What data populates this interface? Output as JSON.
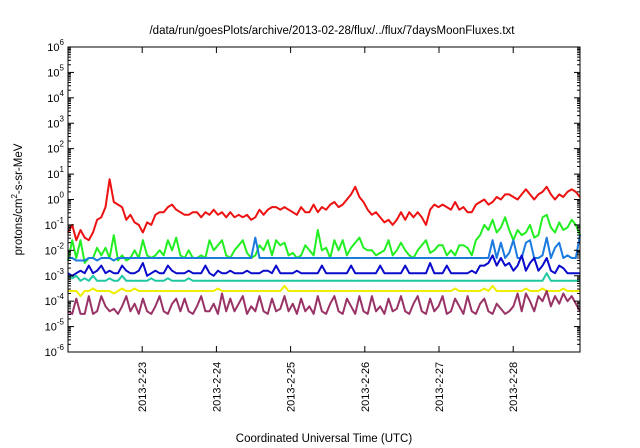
{
  "chart_data": {
    "type": "line",
    "title": "/data/run/goesPlots/archive/2013-02-28/flux/../flux/7daysMoonFluxes.txt",
    "xlabel": "Coordinated Universal Time (UTC)",
    "ylabel": "protons/cm²-s-sr-MeV",
    "ylabel_parts": {
      "pre": "protons/cm",
      "sup": "2",
      "post": "-s-sr-MeV"
    },
    "y_scale": "log",
    "ylim_exponents": [
      -6,
      6
    ],
    "yticks": [
      {
        "base": "10",
        "exp": "6"
      },
      {
        "base": "10",
        "exp": "5"
      },
      {
        "base": "10",
        "exp": "4"
      },
      {
        "base": "10",
        "exp": "3"
      },
      {
        "base": "10",
        "exp": "2"
      },
      {
        "base": "10",
        "exp": "1"
      },
      {
        "base": "10",
        "exp": "0"
      },
      {
        "base": "10",
        "exp": "-1"
      },
      {
        "base": "10",
        "exp": "-2"
      },
      {
        "base": "10",
        "exp": "-3"
      },
      {
        "base": "10",
        "exp": "-4"
      },
      {
        "base": "10",
        "exp": "-5"
      },
      {
        "base": "10",
        "exp": "-6"
      }
    ],
    "xlim_days": [
      22.0,
      28.9
    ],
    "xticks": [
      {
        "label": "2013-2-23",
        "day": 23
      },
      {
        "label": "2013-2-24",
        "day": 24
      },
      {
        "label": "2013-2-25",
        "day": 25
      },
      {
        "label": "2013-2-26",
        "day": 26
      },
      {
        "label": "2013-2-27",
        "day": 27
      },
      {
        "label": "2013-2-28",
        "day": 28
      }
    ],
    "grid": false,
    "legend": "none",
    "n_points": 124,
    "series": [
      {
        "color": "#ee1111",
        "log_values": [
          -1.3,
          -1.0,
          -1.6,
          -1.2,
          -1.5,
          -1.6,
          -1.3,
          -0.8,
          -0.7,
          -0.3,
          0.8,
          -0.1,
          -0.2,
          -0.3,
          -0.8,
          -0.6,
          -0.9,
          -1.0,
          -1.3,
          -0.9,
          -1.0,
          -0.6,
          -0.5,
          -0.5,
          -0.3,
          -0.2,
          -0.4,
          -0.5,
          -0.6,
          -0.6,
          -0.5,
          -0.5,
          -0.7,
          -0.5,
          -0.6,
          -0.4,
          -0.6,
          -0.5,
          -0.7,
          -0.5,
          -0.7,
          -0.6,
          -0.7,
          -0.6,
          -0.8,
          -0.7,
          -0.4,
          -0.6,
          -0.4,
          -0.3,
          -0.3,
          -0.4,
          -0.3,
          -0.4,
          -0.5,
          -0.6,
          -0.3,
          -0.5,
          -0.5,
          -0.2,
          -0.5,
          -0.3,
          -0.4,
          -0.2,
          -0.1,
          -0.3,
          -0.2,
          0.0,
          0.2,
          0.5,
          0.1,
          -0.1,
          -0.4,
          -0.6,
          -0.5,
          -0.7,
          -0.9,
          -0.8,
          -1.0,
          -0.8,
          -0.5,
          -0.8,
          -0.5,
          -0.7,
          -0.5,
          -0.7,
          -1.0,
          -0.4,
          -0.2,
          -0.3,
          -0.2,
          -0.3,
          -0.4,
          -0.1,
          -0.4,
          -0.3,
          -0.5,
          -0.5,
          -0.2,
          -0.1,
          0.0,
          -0.2,
          -0.1,
          0.1,
          0.0,
          0.2,
          0.2,
          0.1,
          0.0,
          0.2,
          0.4,
          0.2,
          0.0,
          0.2,
          0.3,
          0.5,
          0.2,
          0.0,
          0.2,
          0.1,
          0.3,
          0.4,
          0.3,
          0.1
        ]
      },
      {
        "color": "#22ee22",
        "log_values": [
          -2.4,
          -1.6,
          -2.3,
          -1.6,
          -2.5,
          -2.3,
          -2.3,
          -1.9,
          -2.2,
          -1.9,
          -2.3,
          -1.4,
          -2.4,
          -2.2,
          -2.4,
          -2.3,
          -2.0,
          -2.3,
          -1.6,
          -2.2,
          -2.3,
          -2.2,
          -2.0,
          -2.2,
          -1.6,
          -2.0,
          -1.5,
          -2.2,
          -2.3,
          -2.0,
          -2.3,
          -2.3,
          -2.2,
          -2.3,
          -1.6,
          -2.0,
          -1.8,
          -1.6,
          -2.2,
          -2.3,
          -2.0,
          -1.8,
          -1.6,
          -2.1,
          -2.3,
          -2.2,
          -1.8,
          -2.0,
          -1.6,
          -2.2,
          -1.6,
          -1.8,
          -1.7,
          -2.2,
          -2.1,
          -2.3,
          -2.2,
          -1.8,
          -2.0,
          -2.2,
          -1.2,
          -2.0,
          -1.9,
          -2.3,
          -1.6,
          -2.0,
          -1.6,
          -2.2,
          -1.9,
          -1.7,
          -1.5,
          -1.9,
          -2.0,
          -2.0,
          -2.2,
          -2.1,
          -2.0,
          -1.6,
          -2.2,
          -2.0,
          -1.7,
          -2.0,
          -2.2,
          -2.3,
          -2.0,
          -1.8,
          -1.6,
          -2.1,
          -2.0,
          -1.8,
          -1.8,
          -2.2,
          -2.0,
          -2.2,
          -1.8,
          -1.8,
          -1.9,
          -2.2,
          -1.6,
          -1.4,
          -1.0,
          -1.2,
          -0.8,
          -1.3,
          -1.1,
          -0.7,
          -1.2,
          -1.6,
          -1.2,
          -1.4,
          -1.3,
          -1.0,
          -1.5,
          -1.4,
          -0.7,
          -0.6,
          -1.1,
          -1.3,
          -0.9,
          -1.2,
          -1.1,
          -0.8,
          -1.0,
          -1.4
        ]
      },
      {
        "color": "#1a7ae0",
        "log_values": [
          -2.3,
          -2.3,
          -2.4,
          -2.4,
          -2.4,
          -2.3,
          -2.3,
          -2.4,
          -2.3,
          -2.3,
          -2.3,
          -2.4,
          -2.3,
          -2.3,
          -2.3,
          -2.3,
          -2.3,
          -2.3,
          -2.3,
          -2.3,
          -2.3,
          -2.3,
          -2.3,
          -2.3,
          -2.3,
          -2.3,
          -2.3,
          -2.3,
          -2.3,
          -2.3,
          -2.3,
          -2.3,
          -2.3,
          -2.3,
          -2.3,
          -2.3,
          -2.3,
          -2.3,
          -2.3,
          -2.3,
          -2.3,
          -2.3,
          -2.3,
          -2.3,
          -2.3,
          -1.5,
          -2.3,
          -2.3,
          -2.3,
          -2.3,
          -2.3,
          -2.3,
          -2.3,
          -2.3,
          -2.3,
          -2.3,
          -2.3,
          -2.3,
          -2.3,
          -2.3,
          -2.3,
          -2.3,
          -2.3,
          -2.3,
          -2.3,
          -2.3,
          -2.3,
          -2.3,
          -2.3,
          -2.3,
          -2.3,
          -2.3,
          -2.3,
          -2.3,
          -2.3,
          -2.3,
          -2.3,
          -2.3,
          -2.3,
          -2.3,
          -2.3,
          -2.3,
          -2.3,
          -2.3,
          -2.3,
          -2.3,
          -2.3,
          -2.3,
          -2.3,
          -2.3,
          -2.3,
          -2.3,
          -2.3,
          -2.3,
          -2.3,
          -2.3,
          -2.3,
          -2.3,
          -2.3,
          -2.3,
          -2.3,
          -2.3,
          -1.6,
          -2.3,
          -1.7,
          -2.3,
          -2.1,
          -1.6,
          -2.3,
          -2.3,
          -1.7,
          -1.6,
          -2.3,
          -2.3,
          -2.2,
          -1.5,
          -2.3,
          -1.9,
          -1.7,
          -2.3,
          -2.2,
          -2.3,
          -2.3,
          -1.4
        ]
      },
      {
        "color": "#0a0acc",
        "log_values": [
          -2.9,
          -3.0,
          -2.9,
          -2.8,
          -2.9,
          -2.6,
          -2.9,
          -2.8,
          -2.6,
          -2.9,
          -2.8,
          -2.9,
          -2.9,
          -2.6,
          -2.8,
          -2.9,
          -2.9,
          -2.8,
          -2.5,
          -3.0,
          -2.9,
          -2.8,
          -2.9,
          -2.9,
          -2.6,
          -2.8,
          -2.9,
          -2.9,
          -2.9,
          -2.8,
          -2.9,
          -2.9,
          -2.9,
          -2.6,
          -2.9,
          -3.0,
          -2.8,
          -2.9,
          -2.9,
          -2.8,
          -2.9,
          -2.9,
          -2.9,
          -2.8,
          -2.9,
          -2.9,
          -2.9,
          -2.8,
          -2.8,
          -2.9,
          -2.6,
          -2.9,
          -2.9,
          -2.9,
          -2.9,
          -2.8,
          -2.9,
          -2.9,
          -2.9,
          -2.9,
          -2.9,
          -2.6,
          -2.9,
          -2.9,
          -2.9,
          -2.9,
          -2.9,
          -2.9,
          -2.6,
          -2.9,
          -2.9,
          -2.9,
          -2.9,
          -2.9,
          -2.9,
          -2.6,
          -2.9,
          -2.9,
          -2.9,
          -2.9,
          -2.9,
          -2.6,
          -2.9,
          -2.9,
          -2.9,
          -2.9,
          -2.9,
          -2.5,
          -2.9,
          -2.9,
          -2.9,
          -2.6,
          -2.9,
          -2.9,
          -2.9,
          -2.9,
          -2.9,
          -2.8,
          -2.9,
          -2.6,
          -2.6,
          -2.5,
          -2.2,
          -2.6,
          -2.3,
          -2.6,
          -2.5,
          -2.8,
          -2.6,
          -2.2,
          -2.8,
          -2.5,
          -2.3,
          -2.8,
          -2.6,
          -2.3,
          -2.8,
          -2.9,
          -2.6,
          -2.7,
          -2.9,
          -2.9,
          -2.9,
          -2.9
        ]
      },
      {
        "color": "#1ec8a0",
        "log_values": [
          -3.0,
          -3.1,
          -3.0,
          -3.2,
          -3.1,
          -3.2,
          -3.0,
          -3.2,
          -3.2,
          -3.2,
          -3.1,
          -3.2,
          -3.2,
          -3.0,
          -3.2,
          -3.2,
          -3.2,
          -3.2,
          -3.2,
          -3.2,
          -3.1,
          -3.2,
          -3.2,
          -3.2,
          -3.1,
          -3.2,
          -3.2,
          -3.2,
          -3.2,
          -3.1,
          -3.2,
          -3.2,
          -3.2,
          -3.2,
          -3.2,
          -3.2,
          -3.2,
          -3.2,
          -3.2,
          -3.2,
          -3.2,
          -3.2,
          -3.2,
          -3.2,
          -3.2,
          -3.2,
          -3.2,
          -3.2,
          -3.2,
          -3.2,
          -3.2,
          -3.2,
          -3.2,
          -3.2,
          -3.2,
          -3.2,
          -3.2,
          -3.2,
          -3.2,
          -3.2,
          -3.2,
          -3.2,
          -3.2,
          -3.2,
          -3.2,
          -3.2,
          -3.2,
          -3.2,
          -3.2,
          -3.2,
          -3.2,
          -3.2,
          -3.2,
          -3.2,
          -3.2,
          -3.2,
          -3.2,
          -3.2,
          -3.2,
          -3.2,
          -3.2,
          -3.2,
          -3.2,
          -3.2,
          -3.2,
          -3.2,
          -3.2,
          -3.2,
          -3.2,
          -3.2,
          -3.2,
          -3.2,
          -3.2,
          -3.2,
          -3.2,
          -3.2,
          -3.2,
          -3.2,
          -3.2,
          -3.2,
          -3.2,
          -3.2,
          -3.2,
          -3.2,
          -3.2,
          -3.2,
          -3.2,
          -3.2,
          -3.2,
          -3.2,
          -3.2,
          -3.2,
          -3.2,
          -3.2,
          -3.2,
          -2.9,
          -3.2,
          -3.2,
          -3.2,
          -3.2,
          -3.2,
          -3.2,
          -3.2,
          -3.2
        ]
      },
      {
        "color": "#eeee00",
        "log_values": [
          -3.6,
          -3.6,
          -3.6,
          -3.8,
          -3.6,
          -3.6,
          -3.5,
          -3.6,
          -3.6,
          -3.6,
          -3.6,
          -3.7,
          -3.6,
          -3.5,
          -3.6,
          -3.6,
          -3.5,
          -3.6,
          -3.6,
          -3.6,
          -3.6,
          -3.6,
          -3.6,
          -3.6,
          -3.6,
          -3.6,
          -3.6,
          -3.6,
          -3.6,
          -3.6,
          -3.6,
          -3.6,
          -3.6,
          -3.6,
          -3.6,
          -3.6,
          -3.5,
          -3.6,
          -3.6,
          -3.6,
          -3.6,
          -3.6,
          -3.6,
          -3.6,
          -3.6,
          -3.6,
          -3.6,
          -3.6,
          -3.6,
          -3.6,
          -3.6,
          -3.6,
          -3.4,
          -3.6,
          -3.6,
          -3.6,
          -3.6,
          -3.6,
          -3.6,
          -3.6,
          -3.6,
          -3.6,
          -3.6,
          -3.6,
          -3.6,
          -3.6,
          -3.6,
          -3.6,
          -3.6,
          -3.6,
          -3.6,
          -3.6,
          -3.6,
          -3.6,
          -3.6,
          -3.6,
          -3.6,
          -3.6,
          -3.6,
          -3.6,
          -3.6,
          -3.6,
          -3.6,
          -3.6,
          -3.6,
          -3.6,
          -3.6,
          -3.6,
          -3.6,
          -3.6,
          -3.6,
          -3.6,
          -3.6,
          -3.5,
          -3.6,
          -3.6,
          -3.6,
          -3.6,
          -3.6,
          -3.6,
          -3.5,
          -3.6,
          -3.4,
          -3.6,
          -3.6,
          -3.6,
          -3.6,
          -3.6,
          -3.6,
          -3.6,
          -3.5,
          -3.6,
          -3.6,
          -3.6,
          -3.5,
          -3.6,
          -3.6,
          -3.6,
          -3.6,
          -3.5,
          -3.6,
          -3.6,
          -3.6,
          -3.6
        ]
      },
      {
        "color": "#993366",
        "log_values": [
          -4.4,
          -4.5,
          -3.9,
          -4.5,
          -4.5,
          -3.8,
          -4.5,
          -4.4,
          -3.8,
          -4.2,
          -4.4,
          -4.3,
          -4.5,
          -4.2,
          -3.8,
          -4.4,
          -4.1,
          -4.5,
          -3.9,
          -4.4,
          -4.5,
          -4.2,
          -3.8,
          -4.4,
          -4.5,
          -4.1,
          -3.9,
          -4.4,
          -3.9,
          -4.4,
          -4.5,
          -4.2,
          -3.8,
          -4.4,
          -4.4,
          -4.1,
          -4.5,
          -3.7,
          -4.4,
          -3.9,
          -4.4,
          -4.1,
          -3.8,
          -4.5,
          -4.2,
          -4.4,
          -3.8,
          -4.4,
          -4.5,
          -3.9,
          -4.4,
          -4.3,
          -3.8,
          -4.4,
          -4.1,
          -4.5,
          -3.9,
          -4.4,
          -4.2,
          -4.5,
          -3.8,
          -4.4,
          -4.5,
          -4.1,
          -3.8,
          -4.4,
          -4.5,
          -3.9,
          -4.2,
          -4.5,
          -3.8,
          -4.4,
          -4.5,
          -3.8,
          -4.4,
          -4.2,
          -4.5,
          -3.9,
          -4.4,
          -4.3,
          -3.8,
          -4.4,
          -4.5,
          -4.1,
          -3.8,
          -4.4,
          -4.5,
          -3.9,
          -4.4,
          -4.2,
          -3.8,
          -4.5,
          -4.4,
          -3.9,
          -4.2,
          -4.5,
          -3.8,
          -4.4,
          -4.5,
          -4.1,
          -3.9,
          -4.4,
          -4.5,
          -4.1,
          -4.3,
          -4.5,
          -4.4,
          -4.2,
          -3.7,
          -4.4,
          -3.7,
          -4.0,
          -4.4,
          -3.8,
          -4.0,
          -3.6,
          -4.2,
          -3.8,
          -4.1,
          -3.7,
          -4.0,
          -3.8,
          -4.1,
          -4.4
        ]
      }
    ]
  }
}
